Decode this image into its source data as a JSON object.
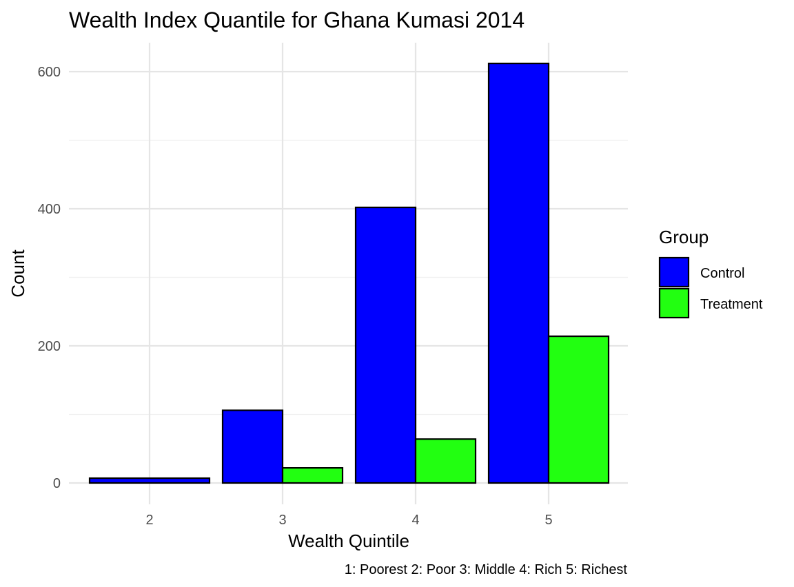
{
  "chart_data": {
    "type": "bar",
    "title": "Wealth Index Quantile for Ghana Kumasi 2014",
    "xlabel": "Wealth Quintile",
    "ylabel": "Count",
    "caption": "1: Poorest 2: Poor 3: Middle 4: Rich 5: Richest",
    "categories": [
      "2",
      "3",
      "4",
      "5"
    ],
    "series": [
      {
        "name": "Control",
        "color": "#0000FF",
        "values": [
          7,
          106,
          402,
          612
        ]
      },
      {
        "name": "Treatment",
        "color": "#22FF11",
        "values": [
          0,
          22,
          64,
          214
        ]
      }
    ],
    "ylim": [
      -30,
      640
    ],
    "yticks": [
      0,
      200,
      400,
      600
    ],
    "yticks_minor": [
      100,
      300,
      500
    ],
    "grid": true,
    "legend": {
      "title": "Group",
      "placement": "right"
    }
  }
}
